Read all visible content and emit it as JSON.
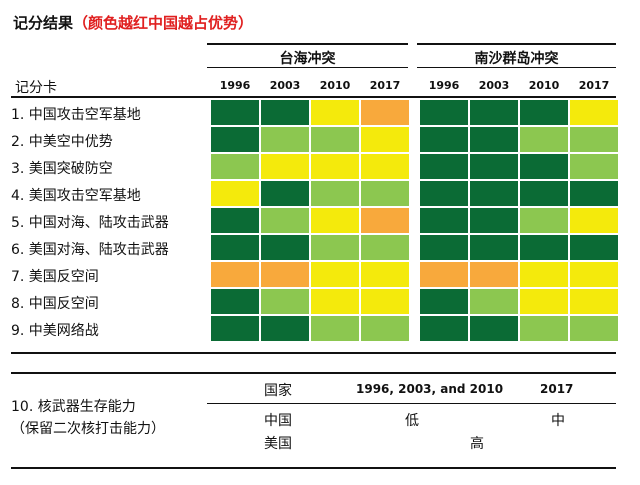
{
  "title": "记分结果",
  "subtitle": "（颜色越红中国越占优势）",
  "colors": {
    "dark_green": "#0b6b35",
    "light_green": "#8cc750",
    "yellow": "#f4ea0c",
    "orange": "#f8a93c"
  },
  "chart_data": {
    "type": "heatmap",
    "title": "记分结果",
    "subtitle": "（颜色越红中国越占优势）",
    "row_header": "记分卡",
    "groups": [
      {
        "name": "台海冲突",
        "years": [
          "1996",
          "2003",
          "2010",
          "2017"
        ]
      },
      {
        "name": "南沙群岛冲突",
        "years": [
          "1996",
          "2003",
          "2010",
          "2017"
        ]
      }
    ],
    "rows": [
      {
        "label": "1. 中国攻击空军基地",
        "taiwan": [
          "dark_green",
          "dark_green",
          "yellow",
          "orange"
        ],
        "spratly": [
          "dark_green",
          "dark_green",
          "dark_green",
          "yellow"
        ]
      },
      {
        "label": "2. 中美空中优势",
        "taiwan": [
          "dark_green",
          "light_green",
          "light_green",
          "yellow"
        ],
        "spratly": [
          "dark_green",
          "dark_green",
          "light_green",
          "light_green"
        ]
      },
      {
        "label": "3. 美国突破防空",
        "taiwan": [
          "light_green",
          "yellow",
          "yellow",
          "yellow"
        ],
        "spratly": [
          "dark_green",
          "dark_green",
          "dark_green",
          "light_green"
        ]
      },
      {
        "label": "4. 美国攻击空军基地",
        "taiwan": [
          "yellow",
          "dark_green",
          "light_green",
          "light_green"
        ],
        "spratly": [
          "dark_green",
          "dark_green",
          "dark_green",
          "dark_green"
        ]
      },
      {
        "label": "5. 中国对海、陆攻击武器",
        "taiwan": [
          "dark_green",
          "light_green",
          "yellow",
          "orange"
        ],
        "spratly": [
          "dark_green",
          "dark_green",
          "light_green",
          "yellow"
        ]
      },
      {
        "label": "6. 美国对海、陆攻击武器",
        "taiwan": [
          "dark_green",
          "dark_green",
          "light_green",
          "light_green"
        ],
        "spratly": [
          "dark_green",
          "dark_green",
          "dark_green",
          "dark_green"
        ]
      },
      {
        "label": "7. 美国反空间",
        "taiwan": [
          "orange",
          "orange",
          "yellow",
          "yellow"
        ],
        "spratly": [
          "orange",
          "orange",
          "yellow",
          "yellow"
        ]
      },
      {
        "label": "8. 中国反空间",
        "taiwan": [
          "dark_green",
          "light_green",
          "yellow",
          "yellow"
        ],
        "spratly": [
          "dark_green",
          "light_green",
          "yellow",
          "yellow"
        ]
      },
      {
        "label": "9. 中美网络战",
        "taiwan": [
          "dark_green",
          "dark_green",
          "light_green",
          "light_green"
        ],
        "spratly": [
          "dark_green",
          "dark_green",
          "light_green",
          "light_green"
        ]
      }
    ]
  },
  "bottom": {
    "label_line1": "10. 核武器生存能力",
    "label_line2": "（保留二次核打击能力）",
    "col_country": "国家",
    "col_period1": "1996, 2003, and 2010",
    "col_period2": "2017",
    "china": "中国",
    "usa": "美国",
    "china_period1": "低",
    "china_period2": "中",
    "usa_all": "高"
  }
}
